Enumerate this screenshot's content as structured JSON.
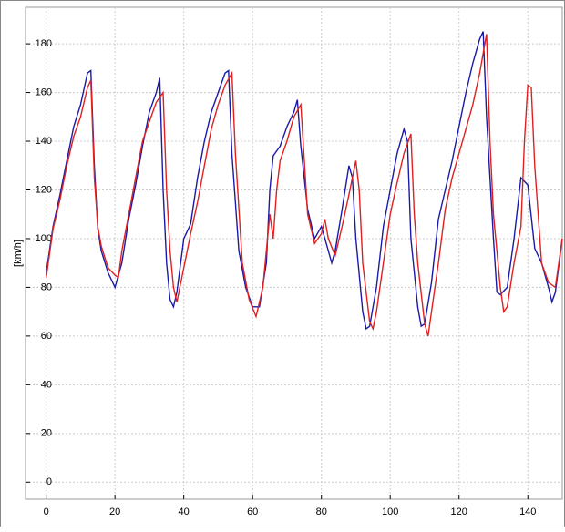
{
  "chart_data": {
    "type": "line",
    "y_label": "[km/h]",
    "xlim": [
      -6,
      150
    ],
    "ylim": [
      -7,
      195
    ],
    "xticks": [
      0,
      20,
      40,
      60,
      80,
      100,
      120,
      140
    ],
    "yticks": [
      0,
      20,
      40,
      60,
      80,
      100,
      120,
      140,
      160,
      180
    ],
    "grid": true,
    "series": [
      {
        "color": "#1a1aa8",
        "x": [
          0,
          2,
          4,
          6,
          8,
          10,
          12,
          13,
          14,
          15,
          16,
          18,
          20,
          22,
          24,
          26,
          28,
          30,
          32,
          33,
          34,
          35,
          36,
          37,
          38,
          40,
          42,
          44,
          46,
          48,
          50,
          52,
          53,
          54,
          56,
          58,
          60,
          62,
          64,
          65,
          66,
          68,
          70,
          72,
          73,
          74,
          76,
          78,
          80,
          82,
          83,
          84,
          86,
          88,
          89,
          90,
          92,
          93,
          94,
          96,
          98,
          100,
          102,
          104,
          105,
          106,
          108,
          109,
          110,
          112,
          114,
          116,
          118,
          120,
          122,
          124,
          126,
          127,
          128,
          130,
          131,
          132,
          134,
          136,
          138,
          140,
          142,
          144,
          146,
          147,
          148,
          150
        ],
        "values": [
          86,
          105,
          118,
          132,
          146,
          155,
          168,
          169,
          130,
          104,
          95,
          86,
          80,
          90,
          108,
          122,
          138,
          152,
          160,
          166,
          120,
          90,
          75,
          72,
          78,
          100,
          106,
          125,
          140,
          152,
          160,
          168,
          169,
          135,
          95,
          80,
          72,
          72,
          90,
          120,
          134,
          138,
          146,
          152,
          157,
          138,
          112,
          100,
          105,
          95,
          90,
          95,
          112,
          130,
          125,
          100,
          70,
          63,
          64,
          80,
          105,
          120,
          135,
          145,
          140,
          100,
          72,
          64,
          65,
          82,
          108,
          120,
          132,
          146,
          160,
          172,
          182,
          185,
          150,
          100,
          78,
          77,
          80,
          100,
          125,
          122,
          96,
          90,
          80,
          74,
          78,
          100
        ]
      },
      {
        "color": "#e02020",
        "x": [
          0,
          2,
          4,
          6,
          8,
          10,
          12,
          13,
          14,
          15,
          16,
          18,
          20,
          21,
          22,
          24,
          26,
          28,
          30,
          32,
          34,
          35,
          36,
          37,
          38,
          40,
          42,
          44,
          46,
          48,
          50,
          52,
          54,
          55,
          57,
          59,
          61,
          63,
          64,
          65,
          66,
          67,
          68,
          70,
          72,
          74,
          76,
          78,
          80,
          81,
          82,
          84,
          86,
          88,
          90,
          91,
          92,
          94,
          95,
          96,
          98,
          100,
          102,
          104,
          106,
          107,
          108,
          110,
          111,
          112,
          114,
          116,
          118,
          120,
          122,
          124,
          126,
          128,
          129,
          130,
          132,
          133,
          134,
          136,
          138,
          139,
          140,
          141,
          142,
          144,
          146,
          148,
          149,
          150
        ],
        "values": [
          84,
          104,
          116,
          130,
          142,
          150,
          162,
          165,
          125,
          105,
          97,
          88,
          85,
          84,
          95,
          110,
          125,
          140,
          148,
          156,
          160,
          120,
          95,
          80,
          74,
          88,
          102,
          115,
          130,
          145,
          155,
          163,
          168,
          135,
          90,
          75,
          68,
          80,
          95,
          110,
          100,
          120,
          132,
          140,
          150,
          155,
          110,
          98,
          102,
          108,
          100,
          93,
          105,
          118,
          132,
          120,
          90,
          66,
          63,
          70,
          90,
          110,
          123,
          135,
          143,
          110,
          90,
          65,
          60,
          70,
          90,
          112,
          125,
          135,
          145,
          155,
          168,
          184,
          140,
          110,
          80,
          70,
          72,
          90,
          105,
          140,
          163,
          162,
          130,
          90,
          82,
          80,
          90,
          100
        ]
      }
    ]
  }
}
